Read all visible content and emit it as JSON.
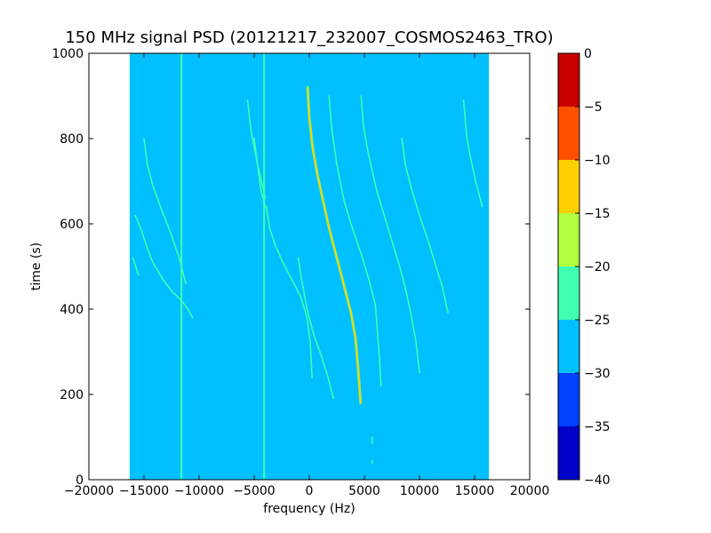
{
  "chart_data": {
    "type": "heatmap",
    "title": "150 MHz signal PSD (20121217_232007_COSMOS2463_TRO)",
    "xlabel": "frequency (Hz)",
    "ylabel": "time (s)",
    "xlim": [
      -20000,
      20000
    ],
    "ylim": [
      0,
      1000
    ],
    "x_ticks": [
      -20000,
      -15000,
      -10000,
      -5000,
      0,
      5000,
      10000,
      15000,
      20000
    ],
    "y_ticks": [
      0,
      200,
      400,
      600,
      800,
      1000
    ],
    "data_extent_x": [
      -16300,
      16300
    ],
    "data_extent_y": [
      0,
      1000
    ],
    "background_level": -27.5,
    "colorbar": {
      "range": [
        -40,
        0
      ],
      "ticks": [
        0,
        -5,
        -10,
        -15,
        -20,
        -25,
        -30,
        -35,
        -40
      ],
      "levels": [
        {
          "from": -40,
          "to": -35,
          "color": "#0000c8"
        },
        {
          "from": -35,
          "to": -30,
          "color": "#0040ff"
        },
        {
          "from": -30,
          "to": -25,
          "color": "#00c0ff"
        },
        {
          "from": -25,
          "to": -20,
          "color": "#40ffb0"
        },
        {
          "from": -20,
          "to": -15,
          "color": "#b0ff40"
        },
        {
          "from": -15,
          "to": -10,
          "color": "#ffd000"
        },
        {
          "from": -10,
          "to": -5,
          "color": "#ff5000"
        },
        {
          "from": -5,
          "to": 0,
          "color": "#c80000"
        }
      ]
    },
    "vertical_lines": [
      {
        "name": "line-minus-11600",
        "freq": -11600,
        "t_start": 0,
        "t_end": 1000,
        "level": -22.5
      },
      {
        "name": "line-minus-4100",
        "freq": -4100,
        "t_start": 0,
        "t_end": 1000,
        "level": -22.5
      }
    ],
    "series": [
      {
        "points": [
          [
            -150,
            920
          ],
          [
            0,
            850
          ],
          [
            300,
            780
          ],
          [
            700,
            720
          ],
          [
            1200,
            660
          ],
          [
            1800,
            590
          ],
          [
            2500,
            520
          ],
          [
            3200,
            450
          ],
          [
            3800,
            390
          ],
          [
            4200,
            330
          ],
          [
            4400,
            270
          ],
          [
            4550,
            220
          ],
          [
            4650,
            180
          ]
        ],
        "level": -12.5
      },
      {
        "points": [
          [
            -3900,
            640
          ],
          [
            -3600,
            590
          ],
          [
            -3100,
            550
          ],
          [
            -2400,
            510
          ],
          [
            -1600,
            470
          ],
          [
            -800,
            430
          ],
          [
            -200,
            380
          ],
          [
            100,
            320
          ],
          [
            250,
            240
          ]
        ],
        "level": -22.5
      },
      {
        "points": [
          [
            -5000,
            800
          ],
          [
            -4700,
            740
          ],
          [
            -4400,
            680
          ],
          [
            -4000,
            640
          ]
        ],
        "level": -22.5
      },
      {
        "points": [
          [
            -1000,
            520
          ],
          [
            -700,
            470
          ],
          [
            -200,
            400
          ],
          [
            400,
            340
          ],
          [
            1100,
            290
          ],
          [
            1700,
            240
          ],
          [
            2200,
            190
          ]
        ],
        "level": -22.5
      },
      {
        "points": [
          [
            -5600,
            890
          ],
          [
            -5300,
            820
          ],
          [
            -4700,
            740
          ],
          [
            -4000,
            660
          ]
        ],
        "level": -22.5
      },
      {
        "points": [
          [
            1800,
            900
          ],
          [
            2000,
            830
          ],
          [
            2500,
            740
          ],
          [
            3100,
            660
          ],
          [
            3900,
            590
          ],
          [
            4700,
            530
          ],
          [
            5400,
            470
          ],
          [
            6000,
            410
          ],
          [
            6200,
            340
          ],
          [
            6400,
            270
          ],
          [
            6500,
            220
          ]
        ],
        "level": -22.5
      },
      {
        "points": [
          [
            4700,
            900
          ],
          [
            4900,
            830
          ],
          [
            5400,
            760
          ],
          [
            6100,
            680
          ],
          [
            6800,
            620
          ],
          [
            7500,
            560
          ],
          [
            8200,
            500
          ],
          [
            8800,
            440
          ],
          [
            9300,
            380
          ],
          [
            9700,
            320
          ],
          [
            10000,
            250
          ]
        ],
        "level": -22.5
      },
      {
        "points": [
          [
            8400,
            800
          ],
          [
            8700,
            740
          ],
          [
            9300,
            680
          ],
          [
            10000,
            620
          ],
          [
            10800,
            560
          ],
          [
            11500,
            500
          ],
          [
            12100,
            450
          ],
          [
            12600,
            390
          ]
        ],
        "level": -22.5
      },
      {
        "points": [
          [
            14000,
            890
          ],
          [
            14300,
            800
          ],
          [
            14600,
            760
          ],
          [
            15100,
            700
          ],
          [
            15700,
            640
          ]
        ],
        "level": -22.5
      },
      {
        "points": [
          [
            -15800,
            620
          ],
          [
            -15300,
            590
          ],
          [
            -14800,
            550
          ],
          [
            -14200,
            510
          ],
          [
            -13300,
            470
          ],
          [
            -12400,
            440
          ],
          [
            -11600,
            420
          ],
          [
            -11000,
            400
          ],
          [
            -10600,
            380
          ]
        ],
        "level": -22.5
      },
      {
        "points": [
          [
            -15000,
            800
          ],
          [
            -14700,
            740
          ],
          [
            -14200,
            690
          ],
          [
            -13500,
            640
          ],
          [
            -12600,
            580
          ],
          [
            -11800,
            520
          ],
          [
            -11200,
            460
          ]
        ],
        "level": -22.5
      },
      {
        "points": [
          [
            -16000,
            520
          ],
          [
            -15500,
            480
          ]
        ],
        "level": -22.5
      },
      {
        "points": [
          [
            5700,
            100
          ],
          [
            5700,
            85
          ]
        ],
        "level": -22.5
      },
      {
        "points": [
          [
            5700,
            45
          ],
          [
            5700,
            38
          ]
        ],
        "level": -22.5
      }
    ]
  }
}
